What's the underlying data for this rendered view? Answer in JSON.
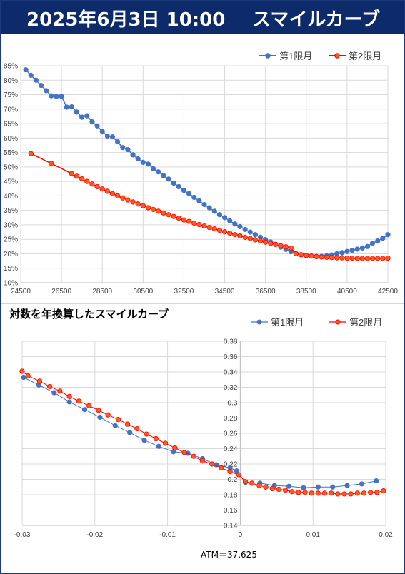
{
  "header": {
    "date_label": "2025年6月3日 10:00",
    "title": "スマイルカーブ"
  },
  "colors": {
    "first": "#4472c4",
    "second": "#ff0000",
    "second_fill": "#ff5a1f",
    "header_bg": "#0d2b6b"
  },
  "chart_data": [
    {
      "type": "line",
      "title": "",
      "xlabel": "",
      "ylabel": "",
      "xlim": [
        24500,
        42500
      ],
      "ylim": [
        0.1,
        0.85
      ],
      "x_ticks": [
        "24500",
        "26500",
        "28500",
        "30500",
        "32500",
        "34500",
        "36500",
        "38500",
        "40500",
        "42500"
      ],
      "y_ticks": [
        "10%",
        "15%",
        "20%",
        "25%",
        "30%",
        "35%",
        "40%",
        "45%",
        "50%",
        "55%",
        "60%",
        "65%",
        "70%",
        "75%",
        "80%",
        "85%"
      ],
      "legend_position": "top-right",
      "grid": true,
      "series": [
        {
          "name": "第1限月",
          "x": [
            24750,
            25000,
            25250,
            25500,
            25750,
            26000,
            26250,
            26500,
            26750,
            27000,
            27250,
            27500,
            27750,
            28000,
            28250,
            28500,
            28750,
            29000,
            29250,
            29500,
            29750,
            30000,
            30250,
            30500,
            30750,
            31000,
            31250,
            31500,
            31750,
            32000,
            32250,
            32500,
            32750,
            33000,
            33250,
            33500,
            33750,
            34000,
            34250,
            34500,
            34750,
            35000,
            35250,
            35500,
            35750,
            36000,
            36250,
            36500,
            36750,
            37000,
            37250,
            37500,
            37750,
            38000,
            38250,
            38500,
            38750,
            39000,
            39250,
            39500,
            39750,
            40000,
            40250,
            40500,
            40750,
            41000,
            41250,
            41500,
            41750,
            42000,
            42250,
            42500
          ],
          "y": [
            0.836,
            0.817,
            0.8,
            0.782,
            0.764,
            0.746,
            0.744,
            0.744,
            0.707,
            0.708,
            0.69,
            0.672,
            0.677,
            0.656,
            0.642,
            0.623,
            0.607,
            0.604,
            0.587,
            0.567,
            0.56,
            0.542,
            0.528,
            0.516,
            0.51,
            0.494,
            0.483,
            0.47,
            0.458,
            0.444,
            0.432,
            0.419,
            0.408,
            0.395,
            0.383,
            0.37,
            0.359,
            0.347,
            0.335,
            0.325,
            0.314,
            0.303,
            0.294,
            0.284,
            0.275,
            0.266,
            0.257,
            0.249,
            0.241,
            0.233,
            0.223,
            0.215,
            0.207,
            0.2,
            0.196,
            0.194,
            0.192,
            0.191,
            0.191,
            0.193,
            0.196,
            0.2,
            0.204,
            0.208,
            0.212,
            0.216,
            0.22,
            0.225,
            0.237,
            0.244,
            0.254,
            0.266
          ]
        },
        {
          "name": "第2限月",
          "x": [
            25000,
            26000,
            27000,
            27250,
            27500,
            27750,
            28000,
            28250,
            28500,
            28750,
            29000,
            29250,
            29500,
            29750,
            30000,
            30250,
            30500,
            30750,
            31000,
            31250,
            31500,
            31750,
            32000,
            32250,
            32500,
            32750,
            33000,
            33250,
            33500,
            33750,
            34000,
            34250,
            34500,
            34750,
            35000,
            35250,
            35500,
            35750,
            36000,
            36250,
            36500,
            36750,
            37000,
            37250,
            37500,
            37750,
            38000,
            38250,
            38500,
            38750,
            39000,
            39250,
            39500,
            39750,
            40000,
            40250,
            40500,
            40750,
            41000,
            41250,
            41500,
            41750,
            42000,
            42250,
            42500
          ],
          "y": [
            0.546,
            0.512,
            0.477,
            0.468,
            0.459,
            0.45,
            0.441,
            0.432,
            0.424,
            0.416,
            0.408,
            0.4,
            0.393,
            0.386,
            0.379,
            0.372,
            0.366,
            0.359,
            0.353,
            0.347,
            0.341,
            0.335,
            0.329,
            0.323,
            0.317,
            0.312,
            0.306,
            0.301,
            0.296,
            0.291,
            0.286,
            0.281,
            0.276,
            0.271,
            0.266,
            0.262,
            0.257,
            0.253,
            0.248,
            0.244,
            0.24,
            0.236,
            0.232,
            0.228,
            0.224,
            0.22,
            0.2,
            0.197,
            0.194,
            0.192,
            0.19,
            0.189,
            0.188,
            0.187,
            0.186,
            0.186,
            0.185,
            0.185,
            0.184,
            0.184,
            0.184,
            0.184,
            0.184,
            0.184,
            0.185
          ]
        }
      ]
    },
    {
      "type": "line",
      "title": "対数を年換算したスマイルカーブ",
      "xlabel": "ATM＝37,625",
      "ylabel": "",
      "xlim": [
        -0.03,
        0.02
      ],
      "ylim": [
        0.14,
        0.38
      ],
      "x_ticks": [
        "-0.03",
        "-0.02",
        "-0.01",
        "0",
        "0.01",
        "0.02"
      ],
      "y_ticks": [
        "0.14",
        "0.16",
        "0.18",
        "0.2",
        "0.22",
        "0.24",
        "0.26",
        "0.28",
        "0.3",
        "0.32",
        "0.34",
        "0.36",
        "0.38"
      ],
      "legend_position": "top-right",
      "grid": true,
      "series": [
        {
          "name": "第1限月",
          "x": [
            -0.0298,
            -0.0277,
            -0.0256,
            -0.0235,
            -0.0214,
            -0.0193,
            -0.0172,
            -0.0152,
            -0.0132,
            -0.0112,
            -0.0092,
            -0.0072,
            -0.0052,
            -0.0033,
            -0.0014,
            -0.0005,
            0.0007,
            0.0027,
            0.0047,
            0.0067,
            0.0087,
            0.0107,
            0.0127,
            0.0147,
            0.0167,
            0.0187
          ],
          "y": [
            0.333,
            0.323,
            0.313,
            0.301,
            0.291,
            0.281,
            0.27,
            0.261,
            0.251,
            0.243,
            0.236,
            0.234,
            0.227,
            0.219,
            0.215,
            0.211,
            0.196,
            0.195,
            0.192,
            0.191,
            0.189,
            0.19,
            0.19,
            0.192,
            0.194,
            0.198
          ]
        },
        {
          "name": "第2限月",
          "x": [
            -0.03,
            -0.0292,
            -0.0276,
            -0.0262,
            -0.0248,
            -0.0235,
            -0.0222,
            -0.0208,
            -0.0195,
            -0.0182,
            -0.0168,
            -0.0155,
            -0.0142,
            -0.0129,
            -0.0116,
            -0.0103,
            -0.009,
            -0.0077,
            -0.0064,
            -0.0052,
            -0.0039,
            -0.0026,
            -0.0014,
            -0.0002,
            0.0007,
            0.0016,
            0.0026,
            0.0035,
            0.0044,
            0.0053,
            0.0062,
            0.0071,
            0.008,
            0.0089,
            0.0098,
            0.0107,
            0.0116,
            0.0125,
            0.0134,
            0.0143,
            0.0152,
            0.0161,
            0.017,
            0.0179,
            0.0188,
            0.0197
          ],
          "y": [
            0.341,
            0.335,
            0.328,
            0.321,
            0.315,
            0.308,
            0.302,
            0.296,
            0.29,
            0.284,
            0.278,
            0.272,
            0.266,
            0.259,
            0.253,
            0.247,
            0.241,
            0.235,
            0.23,
            0.224,
            0.22,
            0.215,
            0.21,
            0.206,
            0.197,
            0.195,
            0.192,
            0.19,
            0.188,
            0.187,
            0.186,
            0.184,
            0.183,
            0.183,
            0.182,
            0.182,
            0.182,
            0.182,
            0.181,
            0.181,
            0.181,
            0.182,
            0.182,
            0.183,
            0.183,
            0.185
          ]
        }
      ]
    }
  ]
}
